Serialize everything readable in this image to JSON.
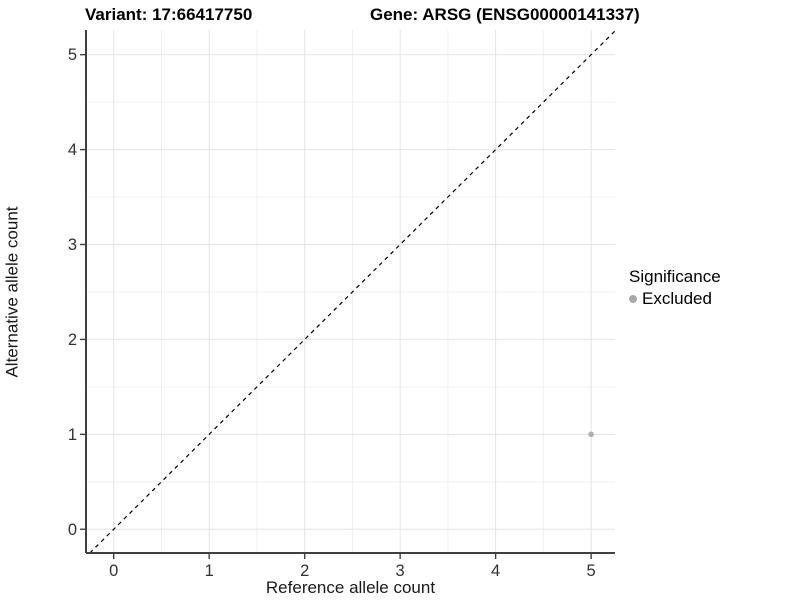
{
  "chart_data": {
    "type": "scatter",
    "titles": [
      "Variant: 17:66417750",
      "Gene: ARSG (ENSG00000141337)"
    ],
    "xlabel": "Reference allele count",
    "ylabel": "Alternative allele count",
    "xlim": [
      -0.29,
      5.25
    ],
    "ylim": [
      -0.25,
      5.26
    ],
    "xticks": [
      0,
      1,
      2,
      3,
      4,
      5
    ],
    "yticks": [
      0,
      1,
      2,
      3,
      4,
      5
    ],
    "grid": {
      "major": true,
      "minor": true,
      "minor_step": 0.5
    },
    "reference_line": {
      "kind": "identity_y_equals_x",
      "style": "dashed",
      "color": "#000000",
      "width": 1.2
    },
    "series": [
      {
        "name": "Excluded",
        "color": "#b0b0b0",
        "marker": "circle",
        "marker_radius": 2.8,
        "points": [
          {
            "x": 5,
            "y": 1
          }
        ]
      }
    ],
    "legend": {
      "title": "Significance",
      "position": "right",
      "entries": [
        {
          "label": "Excluded",
          "color": "#a9a9a9",
          "marker": "circle"
        }
      ]
    },
    "colors": {
      "grid_major": "#e4e4e4",
      "grid_minor": "#f0f0f0",
      "axis_line": "#404040",
      "tick_label": "#333333",
      "background": "#ffffff"
    }
  }
}
